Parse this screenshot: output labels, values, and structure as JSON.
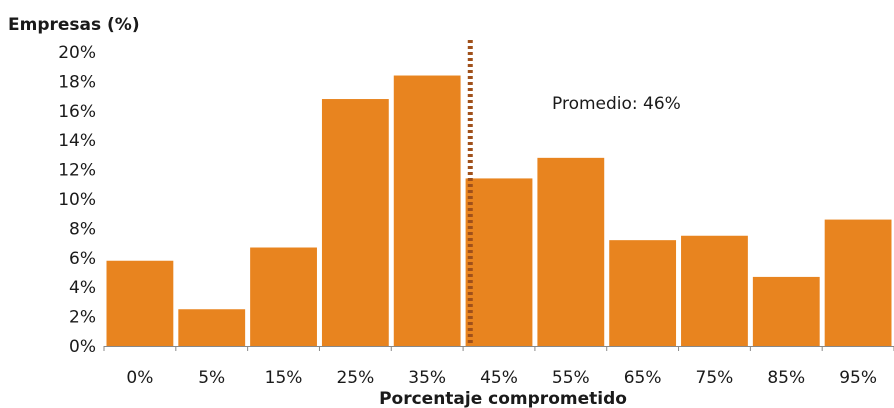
{
  "chart_data": {
    "type": "bar",
    "ylabel": "Empresas (%)",
    "xlabel": "Porcentaje comprometido",
    "categories": [
      "0%",
      "5%",
      "15%",
      "25%",
      "35%",
      "45%",
      "55%",
      "65%",
      "75%",
      "85%",
      "95%"
    ],
    "values": [
      5.8,
      2.5,
      6.7,
      16.8,
      18.4,
      11.4,
      12.8,
      7.2,
      7.5,
      4.7,
      8.6
    ],
    "y_ticks": [
      "0%",
      "2%",
      "4%",
      "6%",
      "8%",
      "10%",
      "12%",
      "14%",
      "16%",
      "18%",
      "20%"
    ],
    "ylim": [
      0,
      20
    ],
    "average": {
      "value": 46,
      "label": "Promedio: 46%",
      "style": "dotted"
    },
    "colors": {
      "bar": "#e8841f",
      "average_line": "#a0501a",
      "axis": "#888888",
      "text": "#1a1a1a"
    },
    "grid": false,
    "legend": "none"
  }
}
